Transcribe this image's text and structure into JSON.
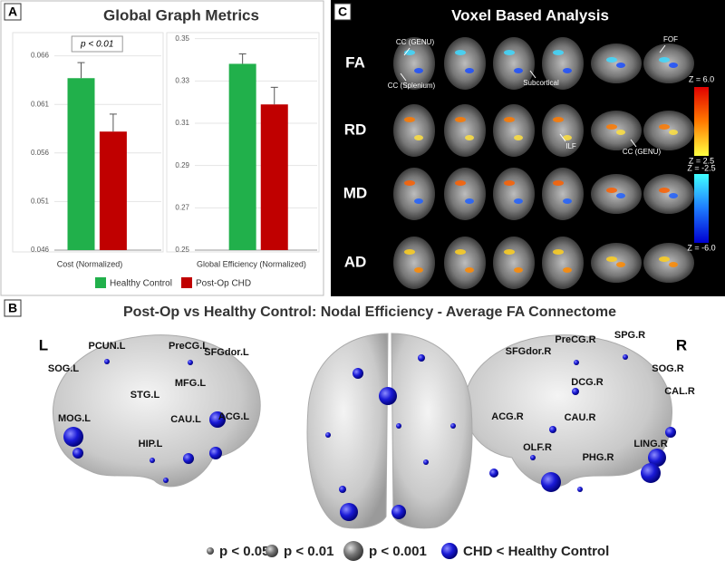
{
  "panel_a": {
    "label": "A",
    "title": "Global Graph Metrics"
  },
  "chart_data": [
    {
      "type": "bar",
      "x_label": "Cost (Normalized)",
      "annotation": "p < 0.01",
      "ylim": [
        0.046,
        0.0682
      ],
      "yticks": [
        0.046,
        0.051,
        0.056,
        0.061,
        0.066
      ],
      "grid": true,
      "series": [
        {
          "name": "Healthy Control",
          "color": "#21b04b",
          "values": [
            0.0637
          ],
          "errors": [
            0.0016
          ]
        },
        {
          "name": "Post-Op CHD",
          "color": "#c00000",
          "values": [
            0.0582
          ],
          "errors": [
            0.0018
          ]
        }
      ]
    },
    {
      "type": "bar",
      "x_label": "Global Efficiency (Normalized)",
      "ylim": [
        0.25,
        0.352
      ],
      "yticks": [
        0.25,
        0.27,
        0.29,
        0.31,
        0.33,
        0.35
      ],
      "grid": true,
      "series": [
        {
          "color": "#21b04b",
          "values": [
            0.3381
          ],
          "errors": [
            0.0047
          ]
        },
        {
          "color": "#c00000",
          "values": [
            0.3189
          ],
          "errors": [
            0.0081
          ]
        }
      ]
    }
  ],
  "panel_c": {
    "label": "C",
    "title": "Voxel Based Analysis",
    "rows": [
      "FA",
      "RD",
      "MD",
      "AD"
    ],
    "annotations": [
      "CC (GENU)",
      "CC (Splenium)",
      "Subcortical",
      "FOF",
      "ILF",
      "CC (GENU)"
    ],
    "colorbar": [
      "Z = 6.0",
      "Z = 2.5",
      "Z = -2.5",
      "Z = -6.0"
    ]
  },
  "panel_b": {
    "label": "B",
    "title": "Post-Op vs Healthy Control: Nodal Efficiency - Average FA Connectome",
    "left": "L",
    "right": "R",
    "nodes_left": [
      "PCUN.L",
      "PreCG.L",
      "SFGdor.L",
      "SOG.L",
      "MFG.L",
      "STG.L",
      "ACG.L",
      "MOG.L",
      "CAU.L",
      "HIP.L"
    ],
    "nodes_right": [
      "PreCG.R",
      "SPG.R",
      "SFGdor.R",
      "SOG.R",
      "DCG.R",
      "CAL.R",
      "ACG.R",
      "CAU.R",
      "LING.R",
      "OLF.R",
      "PHG.R"
    ],
    "legend": [
      "p < 0.05",
      "p < 0.01",
      "p < 0.001",
      "CHD < Healthy Control"
    ]
  }
}
